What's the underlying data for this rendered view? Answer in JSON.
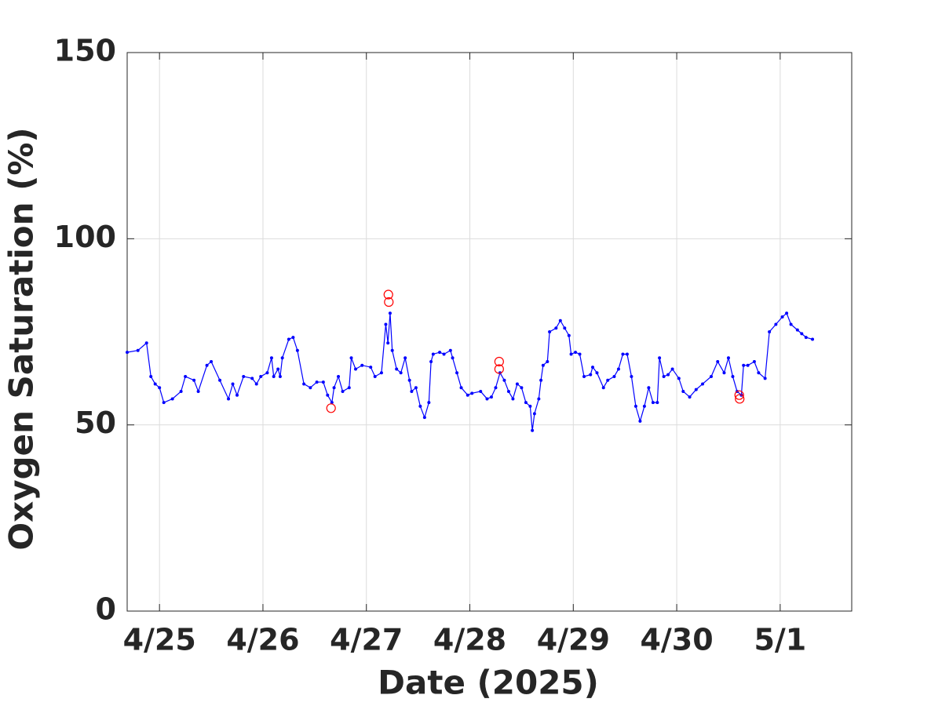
{
  "chart_data": {
    "type": "line",
    "xlabel": "Date (2025)",
    "ylabel": "Oxygen Saturation (%)",
    "x": [
      "2025-04-24T16:30",
      "2025-04-24T19:00",
      "2025-04-24T21:00",
      "2025-04-24T22:00",
      "2025-04-24T23:00",
      "2025-04-25T00:00",
      "2025-04-25T01:00",
      "2025-04-25T03:00",
      "2025-04-25T05:00",
      "2025-04-25T06:00",
      "2025-04-25T08:00",
      "2025-04-25T09:00",
      "2025-04-25T11:00",
      "2025-04-25T12:00",
      "2025-04-25T14:00",
      "2025-04-25T16:00",
      "2025-04-25T17:00",
      "2025-04-25T18:00",
      "2025-04-25T19:30",
      "2025-04-25T21:30",
      "2025-04-25T22:30",
      "2025-04-25T23:30",
      "2025-04-26T01:00",
      "2025-04-26T02:00",
      "2025-04-26T02:30",
      "2025-04-26T03:30",
      "2025-04-26T04:00",
      "2025-04-26T04:30",
      "2025-04-26T06:00",
      "2025-04-26T07:00",
      "2025-04-26T08:00",
      "2025-04-26T09:30",
      "2025-04-26T11:00",
      "2025-04-26T12:30",
      "2025-04-26T14:00",
      "2025-04-26T15:00",
      "2025-04-26T16:00",
      "2025-04-26T16:30",
      "2025-04-26T17:30",
      "2025-04-26T18:30",
      "2025-04-26T20:00",
      "2025-04-26T20:30",
      "2025-04-26T21:30",
      "2025-04-26T23:00",
      "2025-04-27T01:00",
      "2025-04-27T02:00",
      "2025-04-27T03:30",
      "2025-04-27T04:30",
      "2025-04-27T05:00",
      "2025-04-27T05:30",
      "2025-04-27T06:00",
      "2025-04-27T07:00",
      "2025-04-27T08:00",
      "2025-04-27T09:00",
      "2025-04-27T10:00",
      "2025-04-27T10:30",
      "2025-04-27T11:30",
      "2025-04-27T12:30",
      "2025-04-27T13:30",
      "2025-04-27T14:30",
      "2025-04-27T15:00",
      "2025-04-27T15:30",
      "2025-04-27T17:00",
      "2025-04-27T18:00",
      "2025-04-27T19:30",
      "2025-04-27T20:00",
      "2025-04-27T21:00",
      "2025-04-27T22:00",
      "2025-04-27T23:30",
      "2025-04-28T00:30",
      "2025-04-28T02:30",
      "2025-04-28T04:00",
      "2025-04-28T05:00",
      "2025-04-28T06:00",
      "2025-04-28T07:00",
      "2025-04-28T08:00",
      "2025-04-28T09:00",
      "2025-04-28T10:00",
      "2025-04-28T11:00",
      "2025-04-28T12:00",
      "2025-04-28T13:00",
      "2025-04-28T14:00",
      "2025-04-28T14:30",
      "2025-04-28T15:00",
      "2025-04-28T16:00",
      "2025-04-28T16:30",
      "2025-04-28T17:00",
      "2025-04-28T18:00",
      "2025-04-28T18:30",
      "2025-04-28T20:00",
      "2025-04-28T21:00",
      "2025-04-28T22:00",
      "2025-04-28T23:00",
      "2025-04-28T23:30",
      "2025-04-29T00:30",
      "2025-04-29T01:30",
      "2025-04-29T02:30",
      "2025-04-29T04:00",
      "2025-04-29T04:30",
      "2025-04-29T05:30",
      "2025-04-29T07:00",
      "2025-04-29T08:00",
      "2025-04-29T09:30",
      "2025-04-29T10:30",
      "2025-04-29T11:30",
      "2025-04-29T12:30",
      "2025-04-29T13:30",
      "2025-04-29T14:30",
      "2025-04-29T15:30",
      "2025-04-29T16:30",
      "2025-04-29T17:30",
      "2025-04-29T18:30",
      "2025-04-29T19:30",
      "2025-04-29T20:00",
      "2025-04-29T21:00",
      "2025-04-29T22:00",
      "2025-04-29T23:00",
      "2025-04-30T00:30",
      "2025-04-30T01:30",
      "2025-04-30T03:00",
      "2025-04-30T04:30",
      "2025-04-30T06:00",
      "2025-04-30T08:00",
      "2025-04-30T09:30",
      "2025-04-30T11:00",
      "2025-04-30T12:00",
      "2025-04-30T13:00",
      "2025-04-30T14:00",
      "2025-04-30T15:00",
      "2025-04-30T15:30",
      "2025-04-30T16:30",
      "2025-04-30T18:00",
      "2025-04-30T19:00",
      "2025-04-30T20:30",
      "2025-04-30T21:30",
      "2025-04-30T23:00",
      "2025-05-01T00:30",
      "2025-05-01T01:30",
      "2025-05-01T02:30",
      "2025-05-01T04:00",
      "2025-05-01T05:00",
      "2025-05-01T06:00",
      "2025-05-01T07:30"
    ],
    "values": [
      69.5,
      70,
      72,
      63,
      61,
      60,
      56,
      57,
      59,
      63,
      62,
      59,
      66,
      67,
      62,
      57,
      61,
      58,
      63,
      62.5,
      61,
      63,
      64,
      68,
      63,
      65,
      63,
      68,
      73,
      73.5,
      70,
      61,
      60,
      61.5,
      61.5,
      58,
      56,
      60,
      63,
      59,
      60,
      68,
      65,
      66,
      65.5,
      63,
      64,
      77,
      72,
      80,
      70,
      65,
      64,
      68,
      62,
      59,
      60,
      55,
      52,
      56,
      67,
      69,
      69.5,
      69,
      70,
      68,
      64,
      60,
      58,
      58.5,
      59,
      57,
      57.5,
      60,
      64,
      62,
      59,
      57,
      61,
      60,
      56,
      55,
      48.5,
      53,
      57,
      62,
      66,
      67,
      75,
      76,
      78,
      76,
      74,
      69,
      69.5,
      69,
      63,
      63.5,
      65.5,
      64,
      60,
      62,
      63,
      65,
      69,
      69,
      63,
      55,
      51,
      55,
      60,
      56,
      56,
      68,
      63,
      63.5,
      65,
      62.5,
      59,
      57.5,
      59.5,
      61,
      63,
      67,
      64,
      68,
      63,
      59,
      58,
      66,
      66,
      67,
      64,
      62.5,
      75,
      77,
      79,
      80,
      77,
      75.5,
      74.5,
      73.5,
      73
    ],
    "color": "#0000ff",
    "outliers": {
      "x": [
        "2025-04-26T15:48",
        "2025-04-27T05:06",
        "2025-04-27T05:12",
        "2025-04-28T06:48",
        "2025-04-28T06:48",
        "2025-04-30T14:30",
        "2025-04-30T14:36"
      ],
      "values": [
        54.5,
        85,
        83,
        67,
        65,
        58,
        57
      ],
      "color": "#ff0000"
    },
    "xlim": [
      "2025-04-24T16:30",
      "2025-05-01T16:36"
    ],
    "xticks": [
      {
        "value": "2025-04-25T00:00",
        "label": "4/25"
      },
      {
        "value": "2025-04-26T00:00",
        "label": "4/26"
      },
      {
        "value": "2025-04-27T00:00",
        "label": "4/27"
      },
      {
        "value": "2025-04-28T00:00",
        "label": "4/28"
      },
      {
        "value": "2025-04-29T00:00",
        "label": "4/29"
      },
      {
        "value": "2025-04-30T00:00",
        "label": "4/30"
      },
      {
        "value": "2025-05-01T00:00",
        "label": "5/1"
      }
    ],
    "ylim": [
      0,
      150
    ],
    "yticks": [
      0,
      50,
      100,
      150
    ],
    "grid": true
  }
}
